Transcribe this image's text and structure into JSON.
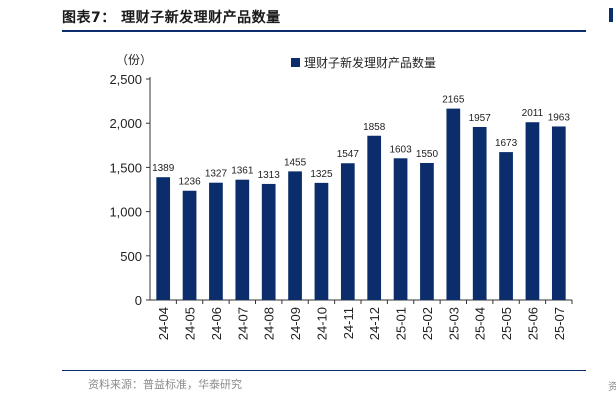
{
  "figure_title": "图表7：  理财子新发理财产品数量",
  "source_note": "资料来源：普益标准，华泰研究",
  "edge_fragment": "资",
  "colors": {
    "bar": "#0b2d6b",
    "rule": "#0b2d6b",
    "source_text": "#8c8c8c"
  },
  "chart_data": {
    "type": "bar",
    "title": "",
    "unit_label": "（份）",
    "xlabel": "",
    "ylabel": "",
    "ylim": [
      0,
      2500
    ],
    "y_ticks": [
      0,
      500,
      1000,
      1500,
      2000,
      2500
    ],
    "y_tick_labels": [
      "0",
      "500",
      "1,000",
      "1,500",
      "2,000",
      "2,500"
    ],
    "legend_position": "top-right",
    "grid": false,
    "categories": [
      "24-04",
      "24-05",
      "24-06",
      "24-07",
      "24-08",
      "24-09",
      "24-10",
      "24-11",
      "24-12",
      "25-01",
      "25-02",
      "25-03",
      "25-04",
      "25-05",
      "25-06",
      "25-07"
    ],
    "series": [
      {
        "name": "理财子新发理财产品数量",
        "values": [
          1389,
          1236,
          1327,
          1361,
          1313,
          1455,
          1325,
          1547,
          1858,
          1603,
          1550,
          2165,
          1957,
          1673,
          2011,
          1963
        ]
      }
    ]
  }
}
